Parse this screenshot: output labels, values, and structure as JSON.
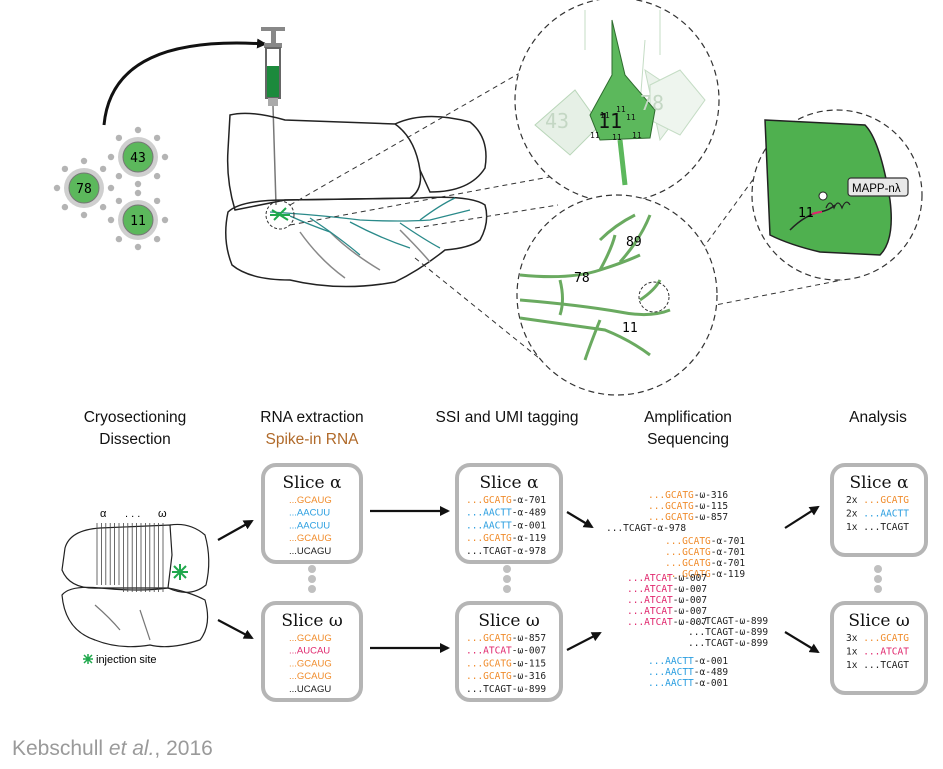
{
  "colors": {
    "green": "#5cb85c",
    "dark_green": "#1c8a3c",
    "orange": "#f08c2c",
    "blue": "#2a9ee0",
    "magenta": "#e0286e",
    "black": "#222222",
    "gray": "#9a9a9a"
  },
  "viruses": [
    {
      "label": "78"
    },
    {
      "label": "43"
    },
    {
      "label": "11"
    }
  ],
  "zoom_cell": {
    "labels": [
      "43",
      "11",
      "78"
    ],
    "small_labels": [
      "11",
      "11",
      "11",
      "11",
      "11",
      "11"
    ]
  },
  "zoom_axons": {
    "labels": [
      "89",
      "78",
      "11"
    ]
  },
  "zoom_bouton": {
    "barcode": "11",
    "tag": "MAPP-nλ"
  },
  "steps": [
    {
      "line1": "Cryosectioning",
      "line2": "Dissection"
    },
    {
      "line1": "RNA extraction",
      "line2": "Spike-in RNA"
    },
    {
      "line1": "SSI and UMI tagging",
      "line2": ""
    },
    {
      "line1": "Amplification",
      "line2": "Sequencing"
    },
    {
      "line1": "Analysis",
      "line2": ""
    }
  ],
  "section_labels": {
    "alpha": "α",
    "dots": ". . .",
    "omega": "ω"
  },
  "injection_site": "injection site",
  "rna_slices": [
    {
      "title": "Slice α",
      "rows": [
        {
          "t": "...GCAUG",
          "c": "orange"
        },
        {
          "t": "...AACUU",
          "c": "blue"
        },
        {
          "t": "...AACUU",
          "c": "blue"
        },
        {
          "t": "...GCAUG",
          "c": "orange"
        },
        {
          "t": "...UCAGU",
          "c": "black"
        }
      ]
    },
    {
      "title": "Slice ω",
      "rows": [
        {
          "t": "...GCAUG",
          "c": "orange"
        },
        {
          "t": "...AUCAU",
          "c": "magenta"
        },
        {
          "t": "...GCAUG",
          "c": "orange"
        },
        {
          "t": "...GCAUG",
          "c": "orange"
        },
        {
          "t": "...UCAGU",
          "c": "black"
        }
      ]
    }
  ],
  "tag_slices": [
    {
      "title": "Slice α",
      "rows": [
        {
          "t": "...GCATG",
          "s": "-α-701",
          "c": "orange"
        },
        {
          "t": "...AACTT",
          "s": "-α-489",
          "c": "blue"
        },
        {
          "t": "...AACTT",
          "s": "-α-001",
          "c": "blue"
        },
        {
          "t": "...GCATG",
          "s": "-α-119",
          "c": "orange"
        },
        {
          "t": "...TCAGT",
          "s": "-α-978",
          "c": "black"
        }
      ]
    },
    {
      "title": "Slice ω",
      "rows": [
        {
          "t": "...GCATG",
          "s": "-ω-857",
          "c": "orange"
        },
        {
          "t": "...ATCAT",
          "s": "-ω-007",
          "c": "magenta"
        },
        {
          "t": "...GCATG",
          "s": "-ω-115",
          "c": "orange"
        },
        {
          "t": "...GCATG",
          "s": "-ω-316",
          "c": "orange"
        },
        {
          "t": "...TCAGT",
          "s": "-ω-899",
          "c": "black"
        }
      ]
    }
  ],
  "amplified": [
    {
      "t": "...GCATG",
      "s": "-ω-316",
      "c": "orange"
    },
    {
      "t": "...GCATG",
      "s": "-ω-115",
      "c": "orange"
    },
    {
      "t": "...GCATG",
      "s": "-ω-857",
      "c": "orange"
    },
    {
      "t": "...TCAGT",
      "s": "-α-978",
      "c": "black"
    },
    {
      "t": "...GCATG",
      "s": "-α-701",
      "c": "orange"
    },
    {
      "t": "...GCATG",
      "s": "-α-701",
      "c": "orange"
    },
    {
      "t": "...GCATG",
      "s": "-α-701",
      "c": "orange"
    },
    {
      "t": "...GCATG",
      "s": "-α-119",
      "c": "orange"
    },
    {
      "t": "...ATCAT",
      "s": "-ω-007",
      "c": "magenta"
    },
    {
      "t": "...ATCAT",
      "s": "-ω-007",
      "c": "magenta"
    },
    {
      "t": "...ATCAT",
      "s": "-ω-007",
      "c": "magenta"
    },
    {
      "t": "...ATCAT",
      "s": "-ω-007",
      "c": "magenta"
    },
    {
      "t": "...ATCAT",
      "s": "-ω-007",
      "c": "magenta"
    },
    {
      "t": "...TCAGT",
      "s": "-ω-899",
      "c": "black"
    },
    {
      "t": "...TCAGT",
      "s": "-ω-899",
      "c": "black"
    },
    {
      "t": "...TCAGT",
      "s": "-ω-899",
      "c": "black"
    },
    {
      "t": "...AACTT",
      "s": "-α-001",
      "c": "blue"
    },
    {
      "t": "...AACTT",
      "s": "-α-489",
      "c": "blue"
    },
    {
      "t": "...AACTT",
      "s": "-α-001",
      "c": "blue"
    }
  ],
  "analysis_slices": [
    {
      "title": "Slice α",
      "rows": [
        {
          "n": "2x",
          "t": "...GCATG",
          "c": "orange"
        },
        {
          "n": "2x",
          "t": "...AACTT",
          "c": "blue"
        },
        {
          "n": "1x",
          "t": "...TCAGT",
          "c": "black"
        }
      ]
    },
    {
      "title": "Slice ω",
      "rows": [
        {
          "n": "3x",
          "t": "...GCATG",
          "c": "orange"
        },
        {
          "n": "1x",
          "t": "...ATCAT",
          "c": "magenta"
        },
        {
          "n": "1x",
          "t": "...TCAGT",
          "c": "black"
        }
      ]
    }
  ],
  "credit": {
    "author": "Kebschull ",
    "etal": "et al.",
    "year": ", 2016"
  }
}
